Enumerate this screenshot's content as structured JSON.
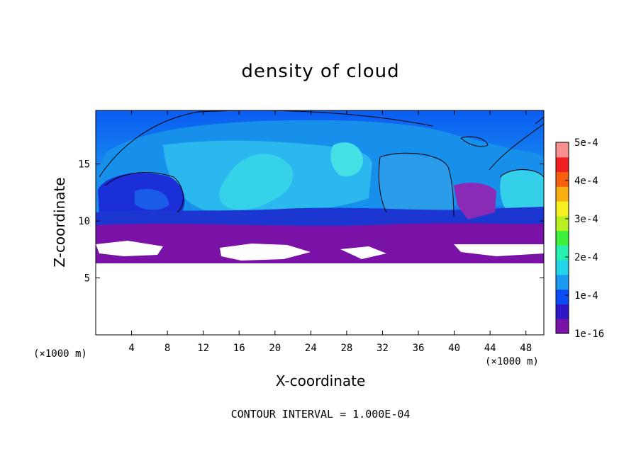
{
  "chart_data": {
    "type": "heatmap",
    "title": "density of cloud",
    "xlabel": "X-coordinate",
    "ylabel": "Z-coordinate",
    "x_unit": "(×1000 m)",
    "x_unit_right": "(×1000 m)",
    "x_ticks": [
      "4",
      "8",
      "12",
      "16",
      "20",
      "24",
      "28",
      "32",
      "36",
      "40",
      "44",
      "48"
    ],
    "y_ticks": [
      "5",
      "10",
      "15"
    ],
    "xlim": [
      0,
      50
    ],
    "ylim": [
      0,
      19.7
    ],
    "colorbar": {
      "ticks": [
        "5e-4",
        "4e-4",
        "3e-4",
        "2e-4",
        "1e-4",
        "1e-16"
      ],
      "range": [
        1e-16,
        0.0005
      ],
      "colors": [
        "#7a12a8",
        "#2c18c8",
        "#0a4bf5",
        "#1a9bf0",
        "#22d4ea",
        "#26f0b0",
        "#3cf03c",
        "#b9f020",
        "#f8f020",
        "#f8b010",
        "#f86010",
        "#f02020",
        "#f89090"
      ]
    },
    "footnote": "CONTOUR INTERVAL = 1.000E-04"
  }
}
